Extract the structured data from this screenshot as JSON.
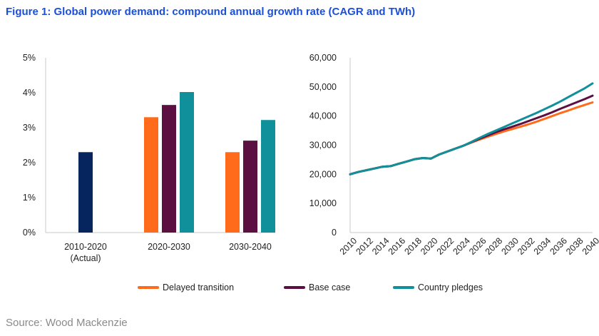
{
  "title": "Figure 1: Global power demand: compound annual growth rate (CAGR and TWh)",
  "source": "Source: Wood Mackenzie",
  "colors": {
    "actual": "#06245e",
    "delayed": "#ff6b1a",
    "base": "#5c1042",
    "pledges": "#10909a"
  },
  "chart_data": [
    {
      "type": "bar",
      "title": "",
      "xlabel": "",
      "ylabel": "",
      "ylim": [
        0,
        5
      ],
      "yticks": [
        "0%",
        "1%",
        "2%",
        "3%",
        "4%",
        "5%"
      ],
      "grid": false,
      "categories": [
        {
          "line1": "2010-2020",
          "line2": "(Actual)"
        },
        {
          "line1": "2020-2030",
          "line2": ""
        },
        {
          "line1": "2030-2040",
          "line2": ""
        }
      ],
      "series": [
        {
          "name": "Actual",
          "color_key": "actual",
          "values": [
            2.3,
            null,
            null
          ]
        },
        {
          "name": "Delayed transition",
          "color_key": "delayed",
          "values": [
            null,
            3.3,
            2.3
          ]
        },
        {
          "name": "Base case",
          "color_key": "base",
          "values": [
            null,
            3.65,
            2.63
          ]
        },
        {
          "name": "Country pledges",
          "color_key": "pledges",
          "values": [
            null,
            4.02,
            3.22
          ]
        }
      ]
    },
    {
      "type": "line",
      "title": "",
      "xlabel": "",
      "ylabel": "",
      "ylim": [
        0,
        60000
      ],
      "xlim": [
        2010,
        2040
      ],
      "yticks": [
        "0",
        "10,000",
        "20,000",
        "30,000",
        "40,000",
        "50,000",
        "60,000"
      ],
      "xticks": [
        "2010",
        "2012",
        "2014",
        "2016",
        "2018",
        "2020",
        "2022",
        "2024",
        "2026",
        "2028",
        "2030",
        "2032",
        "2034",
        "2036",
        "2038",
        "2040"
      ],
      "grid": false,
      "x": [
        2010,
        2011,
        2012,
        2013,
        2014,
        2015,
        2016,
        2017,
        2018,
        2019,
        2020,
        2021,
        2022,
        2023,
        2024,
        2025,
        2026,
        2027,
        2028,
        2029,
        2030,
        2031,
        2032,
        2033,
        2034,
        2035,
        2036,
        2037,
        2038,
        2039,
        2040
      ],
      "series": [
        {
          "name": "Delayed transition",
          "color_key": "delayed",
          "values": [
            20000,
            20800,
            21400,
            22000,
            22600,
            22800,
            23600,
            24400,
            25200,
            25600,
            25400,
            26800,
            27800,
            28800,
            29800,
            30900,
            31900,
            32900,
            33800,
            34700,
            35500,
            36300,
            37100,
            38000,
            39000,
            40000,
            41000,
            41900,
            42900,
            43800,
            44700
          ]
        },
        {
          "name": "Base case",
          "color_key": "base",
          "values": [
            20000,
            20800,
            21400,
            22000,
            22600,
            22800,
            23600,
            24400,
            25200,
            25600,
            25400,
            26800,
            27800,
            28800,
            29800,
            31000,
            32200,
            33300,
            34400,
            35400,
            36300,
            37200,
            38200,
            39200,
            40200,
            41300,
            42500,
            43600,
            44700,
            45800,
            47000
          ]
        },
        {
          "name": "Country pledges",
          "color_key": "pledges",
          "values": [
            20000,
            20800,
            21400,
            22000,
            22600,
            22800,
            23600,
            24400,
            25200,
            25600,
            25400,
            26800,
            27800,
            28800,
            29800,
            31100,
            32500,
            33800,
            35000,
            36200,
            37400,
            38600,
            39800,
            41000,
            42300,
            43600,
            45000,
            46500,
            48000,
            49500,
            51200
          ]
        }
      ]
    }
  ],
  "legend": [
    {
      "label": "Delayed transition",
      "color_key": "delayed"
    },
    {
      "label": "Base case",
      "color_key": "base"
    },
    {
      "label": "Country pledges",
      "color_key": "pledges"
    }
  ]
}
